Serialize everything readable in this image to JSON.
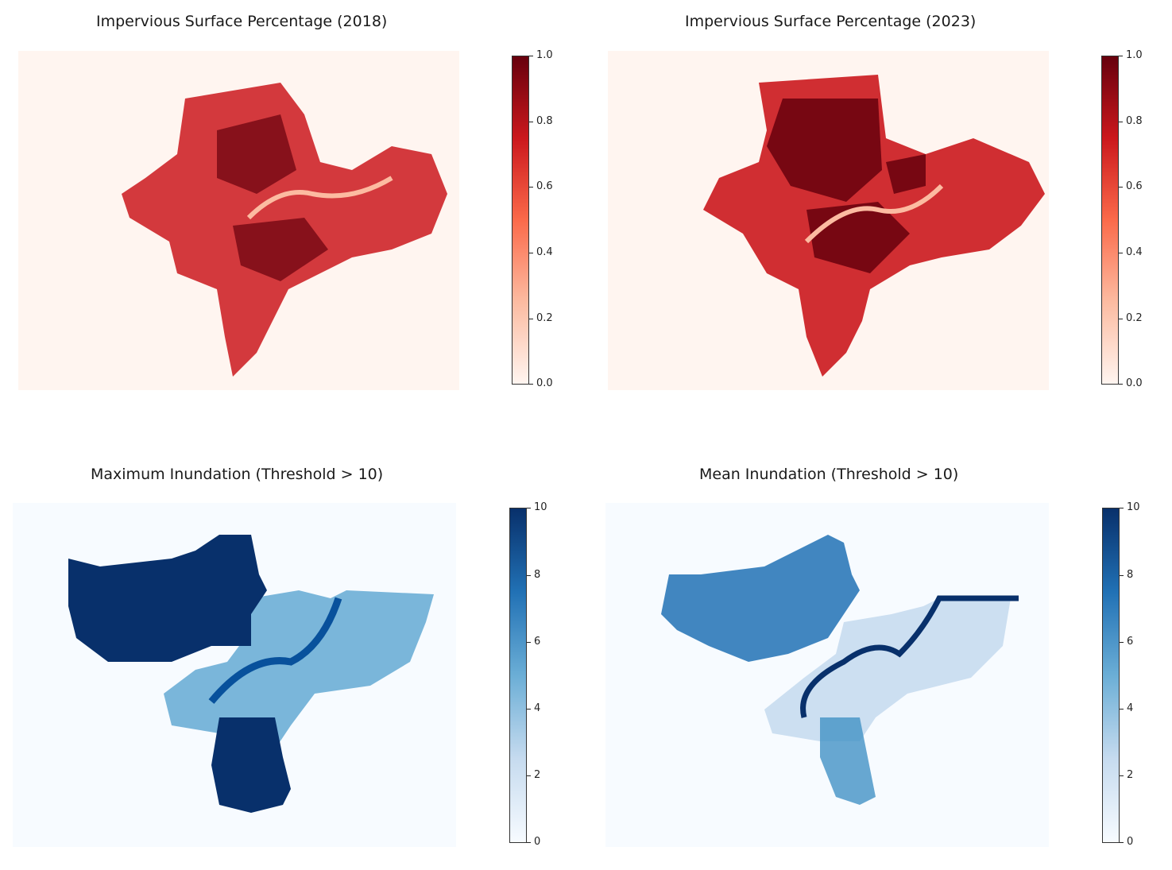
{
  "chart_data": [
    {
      "type": "heatmap",
      "title": "Impervious Surface Percentage (2018)",
      "colormap": "Reds",
      "colorbar": {
        "range": [
          0.0,
          1.0
        ],
        "ticks": [
          "0.0",
          "0.2",
          "0.4",
          "0.6",
          "0.8",
          "1.0"
        ]
      },
      "grid": "hexbin",
      "axes_visible": false
    },
    {
      "type": "heatmap",
      "title": "Impervious Surface Percentage (2023)",
      "colormap": "Reds",
      "colorbar": {
        "range": [
          0.0,
          1.0
        ],
        "ticks": [
          "0.0",
          "0.2",
          "0.4",
          "0.6",
          "0.8",
          "1.0"
        ]
      },
      "grid": "hexbin",
      "axes_visible": false
    },
    {
      "type": "heatmap",
      "title": "Maximum Inundation (Threshold > 10)",
      "colormap": "Blues",
      "colorbar": {
        "range": [
          0,
          10
        ],
        "ticks": [
          "0",
          "2",
          "4",
          "6",
          "8",
          "10"
        ]
      },
      "grid": "hexbin",
      "axes_visible": false
    },
    {
      "type": "heatmap",
      "title": "Mean Inundation (Threshold > 10)",
      "colormap": "Blues",
      "colorbar": {
        "range": [
          0,
          10
        ],
        "ticks": [
          "0",
          "2",
          "4",
          "6",
          "8",
          "10"
        ]
      },
      "grid": "hexbin",
      "axes_visible": false
    }
  ]
}
